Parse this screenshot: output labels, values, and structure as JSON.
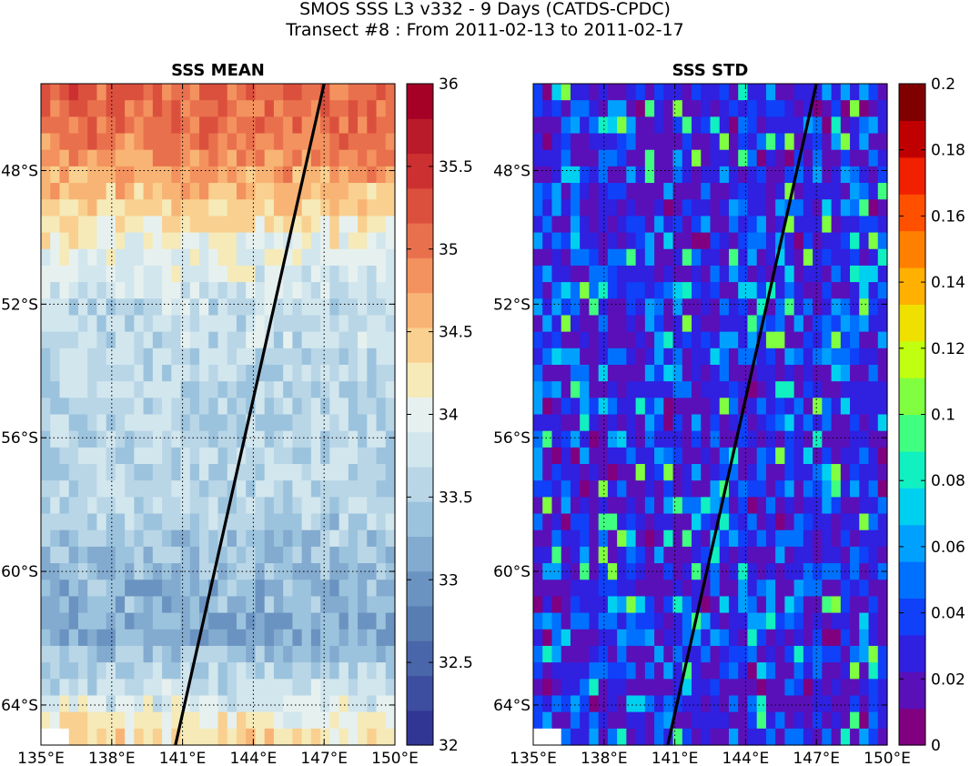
{
  "title_line1": "SMOS SSS L3 v332 - 9 Days (CATDS-CPDC)",
  "title_line2": "Transect #8 : From 2011-02-13 to 2011-02-17",
  "chart_data": [
    {
      "type": "heatmap",
      "title": "SSS MEAN",
      "x_ticks": [
        "135°E",
        "138°E",
        "141°E",
        "144°E",
        "147°E",
        "150°E"
      ],
      "x_tick_values": [
        135,
        138,
        141,
        144,
        147,
        150
      ],
      "y_ticks": [
        "48°S",
        "52°S",
        "56°S",
        "60°S",
        "64°S"
      ],
      "y_tick_values": [
        -48,
        -52,
        -56,
        -60,
        -64
      ],
      "xlim": [
        135,
        150
      ],
      "ylim": [
        -65.2,
        -45.4
      ],
      "grid": true,
      "colormap": "RdYlBu_r",
      "colorbar": {
        "ticks": [
          "32",
          "32.5",
          "33",
          "33.5",
          "34",
          "34.5",
          "35",
          "35.5",
          "36"
        ],
        "tick_values": [
          32,
          32.5,
          33,
          33.5,
          34,
          34.5,
          35,
          35.5,
          36
        ],
        "range": [
          32,
          36
        ],
        "colors": [
          "#313695",
          "#3d4ea0",
          "#4a66aa",
          "#587db3",
          "#6b93c1",
          "#83aacf",
          "#9cc3dd",
          "#b9d6e7",
          "#d2e6ee",
          "#e6f1ef",
          "#f5eab8",
          "#f9d08f",
          "#f8b474",
          "#f3925e",
          "#e9704d",
          "#db503d",
          "#cc3030",
          "#b91b2a",
          "#a50026"
        ]
      },
      "zonal_mean_sss": [
        {
          "lat": -46,
          "sss": 35.1
        },
        {
          "lat": -47.5,
          "sss": 34.9
        },
        {
          "lat": -49,
          "sss": 34.4
        },
        {
          "lat": -50.5,
          "sss": 34.0
        },
        {
          "lat": -52,
          "sss": 33.7
        },
        {
          "lat": -54,
          "sss": 33.6
        },
        {
          "lat": -56,
          "sss": 33.6
        },
        {
          "lat": -58,
          "sss": 33.6
        },
        {
          "lat": -60,
          "sss": 33.3
        },
        {
          "lat": -62,
          "sss": 33.2
        },
        {
          "lat": -63.5,
          "sss": 33.7
        },
        {
          "lat": -64.8,
          "sss": 34.3
        }
      ],
      "transect": [
        {
          "lon": 140.7,
          "lat": -65.2
        },
        {
          "lon": 147.0,
          "lat": -45.4
        }
      ]
    },
    {
      "type": "heatmap",
      "title": "SSS STD",
      "x_ticks": [
        "135°E",
        "138°E",
        "141°E",
        "144°E",
        "147°E",
        "150°E"
      ],
      "x_tick_values": [
        135,
        138,
        141,
        144,
        147,
        150
      ],
      "y_ticks": [
        "48°S",
        "52°S",
        "56°S",
        "60°S",
        "64°S"
      ],
      "y_tick_values": [
        -48,
        -52,
        -56,
        -60,
        -64
      ],
      "xlim": [
        135,
        150
      ],
      "ylim": [
        -65.2,
        -45.4
      ],
      "grid": true,
      "colormap": "jet",
      "colorbar": {
        "ticks": [
          "0",
          "0.02",
          "0.04",
          "0.06",
          "0.08",
          "0.1",
          "0.12",
          "0.14",
          "0.16",
          "0.18",
          "0.2"
        ],
        "tick_values": [
          0,
          0.02,
          0.04,
          0.06,
          0.08,
          0.1,
          0.12,
          0.14,
          0.16,
          0.18,
          0.2
        ],
        "range": [
          0,
          0.2
        ],
        "colors": [
          "#800080",
          "#5a10b8",
          "#3020e0",
          "#1040f8",
          "#0070ff",
          "#00a0ff",
          "#00d0f0",
          "#10f0c0",
          "#40ff80",
          "#80ff40",
          "#c0ff10",
          "#f0e000",
          "#ffb000",
          "#ff8000",
          "#ff5000",
          "#f02000",
          "#c00000",
          "#800000"
        ]
      },
      "typical_std_range": [
        0.01,
        0.06
      ],
      "transect": [
        {
          "lon": 140.7,
          "lat": -65.2
        },
        {
          "lon": 147.0,
          "lat": -45.4
        }
      ]
    }
  ]
}
